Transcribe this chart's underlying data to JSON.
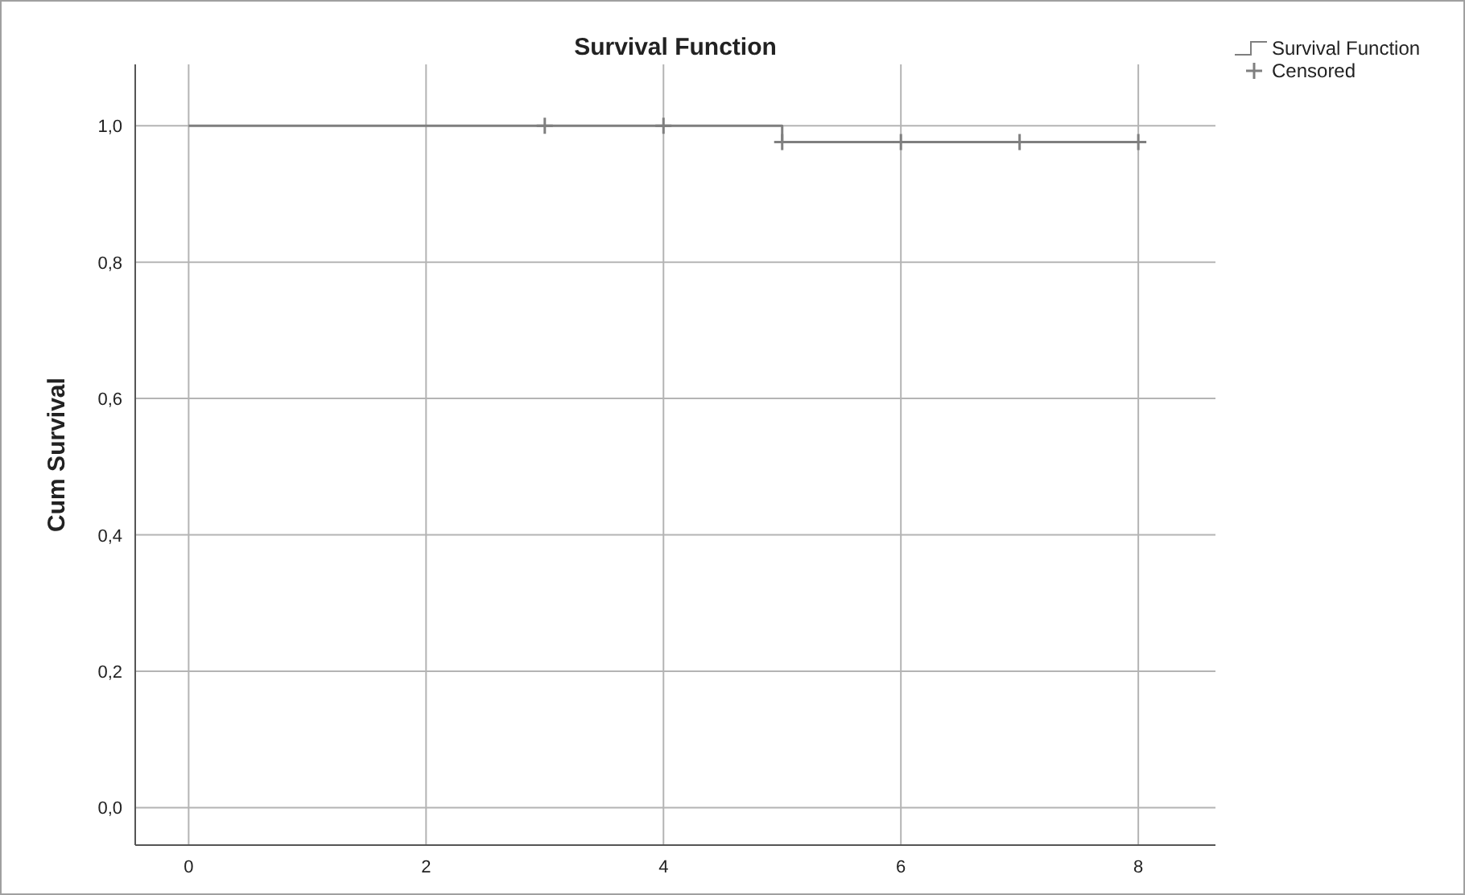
{
  "chart_data": {
    "type": "step",
    "title": "Survival Function",
    "ylabel": "Cum Survival",
    "xlim": [
      -0.45,
      8.65
    ],
    "xticks": [
      0,
      2,
      4,
      6,
      8
    ],
    "ylim": [
      -0.055,
      1.09
    ],
    "yticks": [
      {
        "value": 0,
        "label": "0,0"
      },
      {
        "value": 0.2,
        "label": "0,2"
      },
      {
        "value": 0.4,
        "label": "0,4"
      },
      {
        "value": 0.6,
        "label": "0,6"
      },
      {
        "value": 0.8,
        "label": "0,8"
      },
      {
        "value": 1,
        "label": "1,0"
      }
    ],
    "grid": true,
    "legend": "top right",
    "series": [
      {
        "name": "Survival Function",
        "color": "#7f7f7f",
        "x": [
          0,
          5,
          8
        ],
        "values": [
          1,
          0.976,
          0.976
        ],
        "marker": "none"
      },
      {
        "name": "Censored",
        "type": "scatter",
        "color": "#7f7f7f",
        "x": [
          3,
          4,
          5,
          6,
          7,
          8
        ],
        "values": [
          1,
          1,
          0.976,
          0.976,
          0.976,
          0.976
        ],
        "marker": "cross"
      }
    ]
  }
}
